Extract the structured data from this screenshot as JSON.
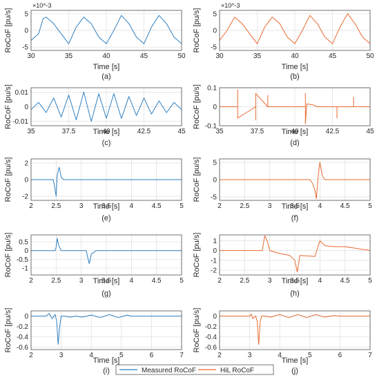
{
  "colors": {
    "measured": "#2e7fc1",
    "hil": "#e8692e",
    "grid": "#dedede",
    "axis": "#4d4d4d"
  },
  "legend": {
    "measured": "Measured RoCoF",
    "hil": "HiL RoCoF"
  },
  "chart_data": [
    {
      "panel": "a",
      "type": "line",
      "series_color": "measured",
      "title": "",
      "xlabel": "Time [s]",
      "ylabel": "RoCoF [pu/s]",
      "xlim": [
        30,
        50
      ],
      "ylim": [
        -6,
        6
      ],
      "xticks": [
        "30",
        "35",
        "40",
        "45",
        "50"
      ],
      "yticks": [
        "-5",
        "0",
        "5"
      ],
      "exponent": "×10^-3",
      "caption": "(a)",
      "grid": true,
      "x": [
        30,
        31,
        31.6,
        32,
        33,
        34,
        35,
        36,
        37,
        38,
        39,
        40,
        41,
        42,
        43,
        44,
        45,
        46,
        47,
        48,
        49,
        50
      ],
      "y": [
        -3,
        -1,
        3.5,
        4,
        2,
        -1,
        -4,
        1,
        4,
        2,
        -2,
        -4,
        0,
        4.5,
        2,
        -2,
        -4,
        1,
        4.5,
        2,
        -2,
        -4
      ]
    },
    {
      "panel": "b",
      "type": "line",
      "series_color": "hil",
      "title": "",
      "xlabel": "Time [s]",
      "ylabel": "RoCoF [pu/s]",
      "xlim": [
        30,
        50
      ],
      "ylim": [
        -6,
        6
      ],
      "xticks": [
        "30",
        "35",
        "40",
        "45",
        "50"
      ],
      "yticks": [
        "-5",
        "0",
        "5"
      ],
      "exponent": "×10^-3",
      "caption": "(b)",
      "grid": true,
      "x": [
        30,
        31,
        32,
        33,
        34,
        35,
        36,
        37,
        38,
        39,
        40,
        41,
        42,
        43,
        44,
        45,
        46,
        47,
        48,
        49,
        50
      ],
      "y": [
        -3,
        0,
        4,
        2,
        -1,
        -4,
        1,
        4,
        2,
        -2,
        -4,
        0,
        4.5,
        2,
        -2,
        -4,
        1,
        5,
        2,
        -2,
        -4
      ]
    },
    {
      "panel": "c",
      "type": "line",
      "series_color": "measured",
      "title": "",
      "xlabel": "Time [s]",
      "ylabel": "RoCoF [pu/s]",
      "xlim": [
        35,
        45
      ],
      "ylim": [
        -0.013,
        0.013
      ],
      "xticks": [
        "35",
        "37.5",
        "40",
        "42.5",
        "45"
      ],
      "yticks": [
        "-0.01",
        "0",
        "0.01"
      ],
      "caption": "(c)",
      "grid": true,
      "x": [
        35,
        35.5,
        36,
        36.5,
        37,
        37.5,
        38,
        38.5,
        39,
        39.5,
        40,
        40.5,
        41,
        41.5,
        42,
        42.5,
        43,
        43.5,
        44,
        44.5,
        45
      ],
      "y": [
        -0.002,
        0.003,
        -0.004,
        0.006,
        -0.007,
        0.008,
        -0.009,
        0.01,
        -0.01,
        0.009,
        -0.008,
        0.009,
        -0.008,
        0.007,
        -0.006,
        0.006,
        -0.005,
        0.004,
        -0.004,
        0.003,
        -0.002
      ]
    },
    {
      "panel": "d",
      "type": "line",
      "series_color": "hil",
      "title": "",
      "xlabel": "Time [s]",
      "ylabel": "RoCoF [pu/s]",
      "xlim": [
        35,
        45
      ],
      "ylim": [
        -0.1,
        0.1
      ],
      "xticks": [
        "35",
        "37.5",
        "40",
        "42.5",
        "45"
      ],
      "yticks": [
        "-0.1",
        "0",
        "0.1"
      ],
      "caption": "(d)",
      "grid": true,
      "x": [
        35,
        36.2,
        36.2,
        36.2,
        37.4,
        37.4,
        37.4,
        38.2,
        38.2,
        38.2,
        40.7,
        40.7,
        40.7,
        40.8,
        41.2,
        41.5,
        42.8,
        42.8,
        42.8,
        43.9,
        43.9,
        43.9,
        45
      ],
      "y": [
        0,
        0,
        0.09,
        -0.06,
        0,
        -0.07,
        0.07,
        0,
        0.06,
        0,
        0,
        0.07,
        -0.09,
        0.015,
        0.01,
        0,
        0,
        -0.06,
        0,
        0,
        0.05,
        0,
        0
      ]
    },
    {
      "panel": "e",
      "type": "line",
      "series_color": "measured",
      "title": "",
      "xlabel": "Time [s]",
      "ylabel": "RoCoF [pu/s]",
      "xlim": [
        2,
        5
      ],
      "ylim": [
        -2.5,
        2.5
      ],
      "xticks": [
        "2",
        "2.5",
        "3",
        "3.5",
        "4",
        "4.5",
        "5"
      ],
      "yticks": [
        "-2",
        "0",
        "2"
      ],
      "caption": "(e)",
      "grid": true,
      "x": [
        2,
        2.44,
        2.46,
        2.5,
        2.52,
        2.56,
        2.6,
        2.65,
        2.7,
        5
      ],
      "y": [
        0,
        0,
        -0.5,
        -2,
        0.5,
        1.5,
        0.3,
        0,
        0,
        0
      ]
    },
    {
      "panel": "f",
      "type": "line",
      "series_color": "hil",
      "title": "",
      "xlabel": "Time [s]",
      "ylabel": "RoCoF [pu/s]",
      "xlim": [
        2,
        5
      ],
      "ylim": [
        -6,
        6
      ],
      "xticks": [
        "2",
        "2.5",
        "3",
        "3.5",
        "4",
        "4.5",
        "5"
      ],
      "yticks": [
        "-5",
        "0",
        "5"
      ],
      "caption": "(f)",
      "grid": true,
      "x": [
        2,
        3.8,
        3.85,
        3.9,
        3.93,
        3.97,
        4.0,
        4.05,
        4.1,
        5
      ],
      "y": [
        0,
        0,
        -1,
        -3,
        -5.5,
        2,
        5,
        1,
        0,
        0
      ]
    },
    {
      "panel": "g",
      "type": "line",
      "series_color": "measured",
      "title": "",
      "xlabel": "Time [s]",
      "ylabel": "RoCoF [pu/s]",
      "xlim": [
        2,
        5
      ],
      "ylim": [
        -1.4,
        0.9
      ],
      "xticks": [
        "2",
        "2.5",
        "3",
        "3.5",
        "4",
        "4.5",
        "5"
      ],
      "yticks": [
        "-1",
        "-0.5",
        "0",
        "0.5"
      ],
      "caption": "(g)",
      "grid": true,
      "x": [
        2,
        2.48,
        2.5,
        2.52,
        2.55,
        2.6,
        2.7,
        3.1,
        3.13,
        3.16,
        3.2,
        3.3,
        3.9,
        5
      ],
      "y": [
        0,
        0,
        0.2,
        0.7,
        0.3,
        0,
        0,
        0,
        -0.4,
        -0.75,
        -0.2,
        0,
        0,
        0
      ]
    },
    {
      "panel": "h",
      "type": "line",
      "series_color": "hil",
      "title": "",
      "xlabel": "Time [s]",
      "ylabel": "RoCoF [pu/s]",
      "xlim": [
        2,
        5
      ],
      "ylim": [
        -2.5,
        1.6
      ],
      "xticks": [
        "2",
        "2.5",
        "3",
        "3.5",
        "4",
        "4.5",
        "5"
      ],
      "yticks": [
        "-2",
        "-1",
        "0",
        "1"
      ],
      "caption": "(h)",
      "grid": true,
      "x": [
        2,
        2.85,
        2.9,
        2.95,
        3.0,
        3.2,
        3.4,
        3.5,
        3.55,
        3.6,
        3.9,
        4.0,
        4.1,
        4.3,
        4.5,
        5
      ],
      "y": [
        0,
        0,
        1.5,
        1.0,
        0,
        -0.3,
        -0.5,
        -1.0,
        -2.2,
        -0.5,
        -0.6,
        1.0,
        0.5,
        0.4,
        0.4,
        0
      ]
    },
    {
      "panel": "i",
      "type": "line",
      "series_color": "measured",
      "title": "",
      "xlabel": "Time [s]",
      "ylabel": "RoCoF [pu/s]",
      "xlim": [
        2,
        7
      ],
      "ylim": [
        -0.65,
        0.1
      ],
      "xticks": [
        "2",
        "3",
        "4",
        "5",
        "6",
        "7"
      ],
      "yticks": [
        "-0.6",
        "-0.4",
        "-0.2",
        "0"
      ],
      "caption": "(i)",
      "grid": true,
      "x": [
        2,
        2.5,
        2.6,
        2.7,
        2.8,
        2.85,
        2.9,
        2.95,
        3.0,
        3.1,
        3.3,
        3.5,
        3.7,
        4.0,
        4.3,
        4.6,
        4.9,
        5.2,
        5.3,
        7
      ],
      "y": [
        0,
        0,
        0.05,
        -0.05,
        0.03,
        -0.1,
        -0.55,
        -0.2,
        0,
        0,
        -0.02,
        0,
        -0.02,
        0.02,
        -0.03,
        0.03,
        -0.03,
        0.02,
        0,
        0
      ]
    },
    {
      "panel": "j",
      "type": "line",
      "series_color": "hil",
      "title": "",
      "xlabel": "Time [s]",
      "ylabel": "RoCoF [pu/s]",
      "xlim": [
        2,
        7
      ],
      "ylim": [
        -0.65,
        0.1
      ],
      "xticks": [
        "2",
        "3",
        "4",
        "5",
        "6",
        "7"
      ],
      "yticks": [
        "-0.6",
        "-0.4",
        "-0.2",
        "0"
      ],
      "caption": "(j)",
      "grid": true,
      "x": [
        2,
        3.0,
        3.05,
        3.1,
        3.2,
        3.25,
        3.3,
        3.35,
        3.4,
        3.5,
        3.7,
        4.0,
        4.3,
        4.6,
        4.9,
        5.2,
        5.5,
        5.8,
        6.0,
        7
      ],
      "y": [
        0,
        0,
        0.04,
        -0.05,
        0,
        -0.1,
        -0.55,
        -0.1,
        0,
        0,
        -0.02,
        0.03,
        -0.03,
        0.03,
        -0.03,
        0.03,
        -0.02,
        0.01,
        0,
        0
      ]
    }
  ]
}
